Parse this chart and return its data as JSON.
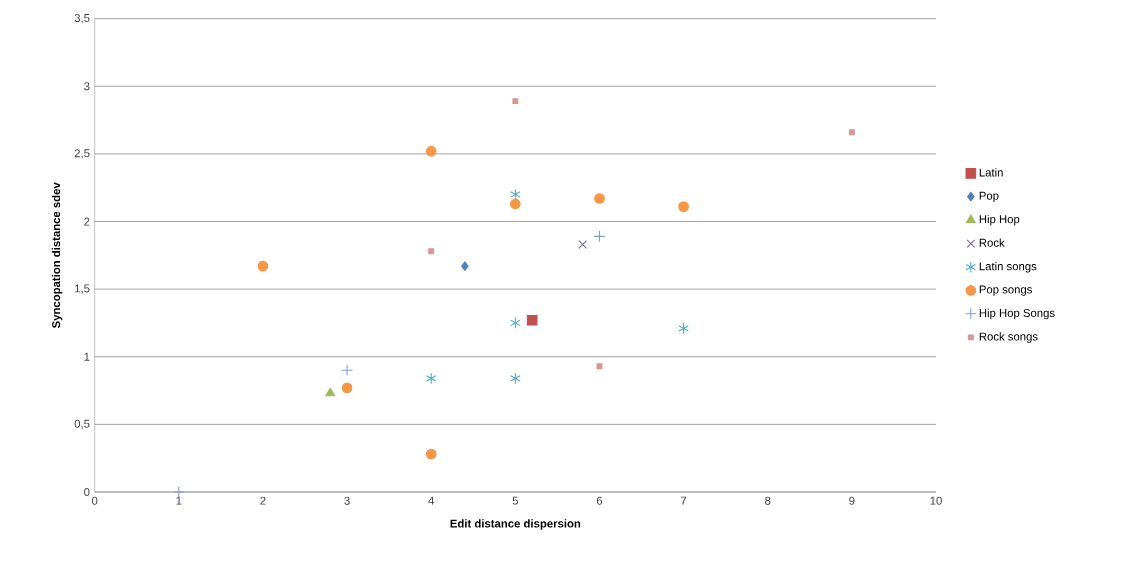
{
  "chart_data": {
    "type": "scatter",
    "xlabel": "Edit distance  dispersion",
    "ylabel": "Syncopation distance sdev",
    "xlim": [
      0,
      10
    ],
    "xticks": [
      0,
      1,
      2,
      3,
      4,
      5,
      6,
      7,
      8,
      9,
      10
    ],
    "ylim": [
      0,
      3.5
    ],
    "yticks": [
      0,
      {
        "value": 0.5,
        "label": "0,5"
      },
      1,
      {
        "value": 1.5,
        "label": "1,5"
      },
      2,
      {
        "value": 2.5,
        "label": "2,5"
      },
      3,
      {
        "value": 3.5,
        "label": "3,5"
      }
    ],
    "grid": "y",
    "legend": "right",
    "series": [
      {
        "name": "Latin",
        "color": "#c0504d",
        "marker": "square",
        "x": [
          5.2
        ],
        "values": [
          1.27
        ]
      },
      {
        "name": "Pop",
        "color": "#4f81bd",
        "marker": "diamond",
        "x": [
          4.4
        ],
        "values": [
          1.67
        ]
      },
      {
        "name": "Hip Hop",
        "color": "#9bbb59",
        "marker": "triangle",
        "x": [
          2.8
        ],
        "values": [
          0.73
        ]
      },
      {
        "name": "Rock",
        "color": "#8064a2",
        "marker": "cross",
        "x": [
          5.8
        ],
        "values": [
          1.83
        ]
      },
      {
        "name": "Latin songs",
        "color": "#4bacc6",
        "x": [
          5,
          5,
          4,
          5,
          7
        ],
        "values": [
          2.2,
          1.25,
          0.84,
          0.84,
          1.21
        ]
      },
      {
        "name": "Pop songs",
        "color": "#f79646",
        "marker": "circle",
        "x": [
          2,
          4,
          4,
          5,
          6,
          7,
          3
        ],
        "values": [
          1.67,
          0.28,
          2.52,
          2.13,
          2.17,
          2.11,
          0.77
        ]
      },
      {
        "name": "Hip Hop Songs",
        "color": "#7f9fd8",
        "marker": "plus",
        "x": [
          1,
          3,
          6
        ],
        "values": [
          0,
          0.9,
          1.89
        ]
      },
      {
        "name": "Rock songs",
        "color": "#d99694",
        "marker": "square",
        "x": [
          5,
          4,
          6,
          9
        ],
        "values": [
          2.89,
          1.78,
          0.93,
          2.66
        ]
      }
    ]
  }
}
